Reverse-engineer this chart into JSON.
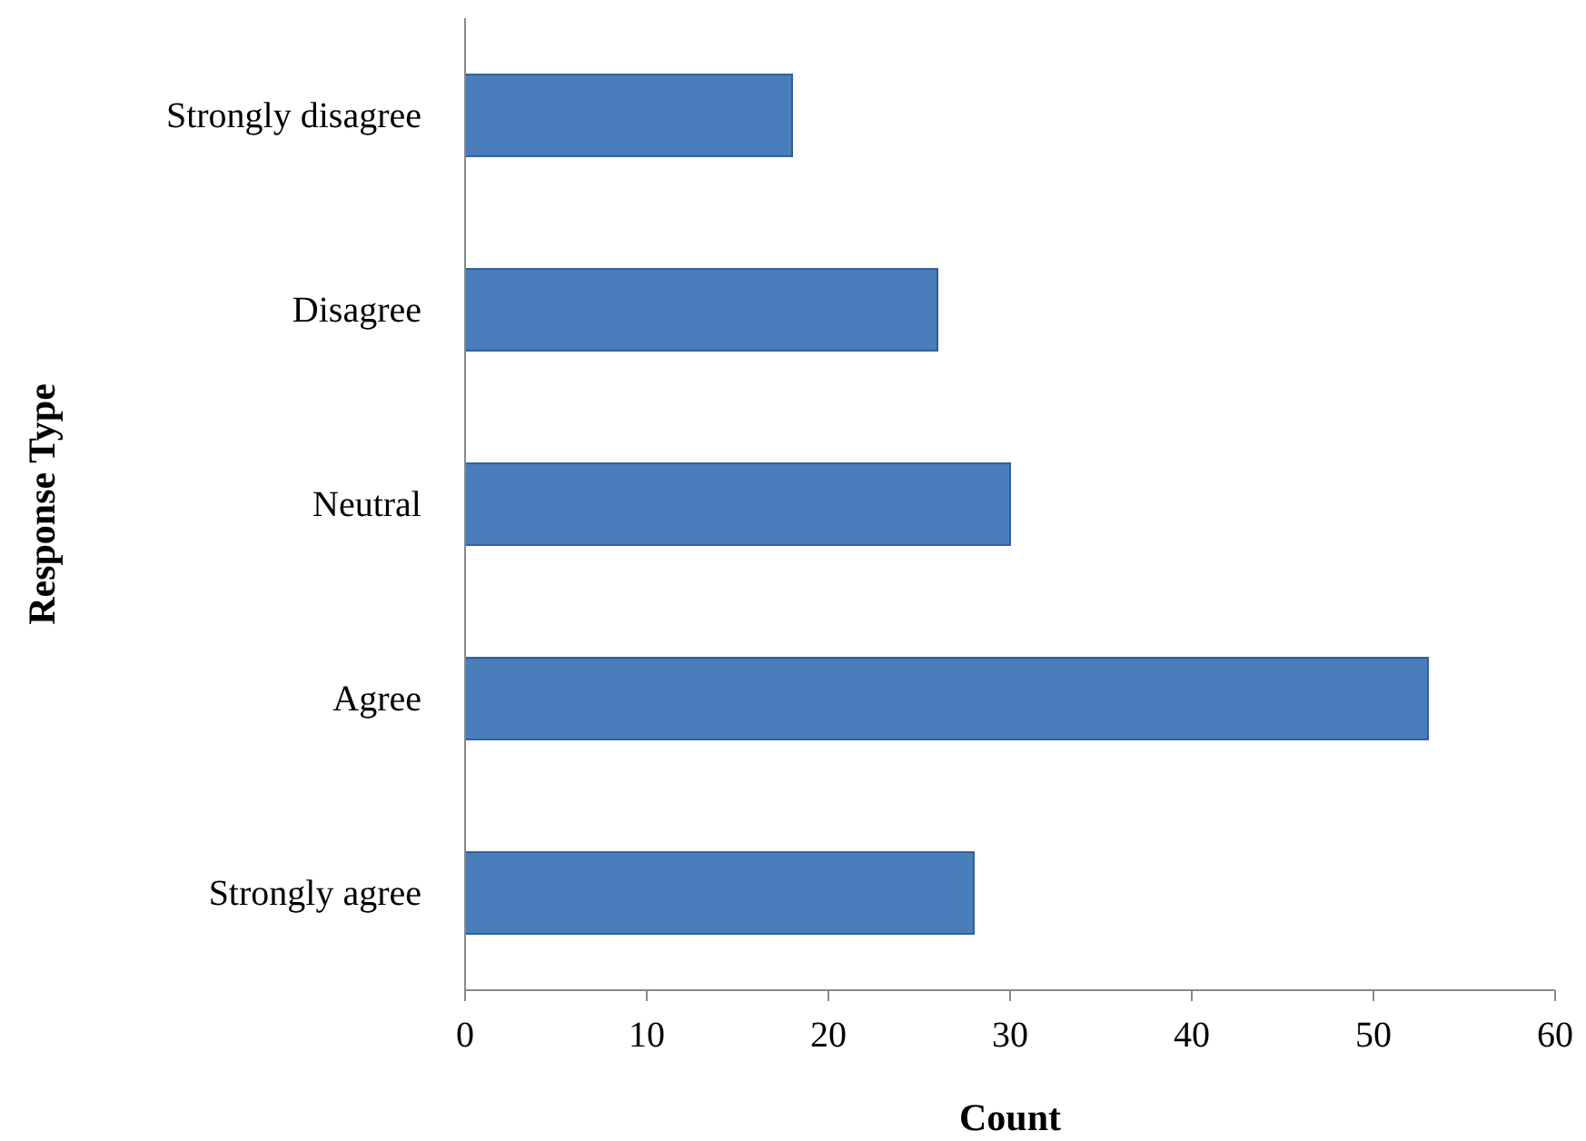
{
  "chart_data": {
    "type": "bar",
    "orientation": "horizontal",
    "categories": [
      "Strongly disagree",
      "Disagree",
      "Neutral",
      "Agree",
      "Strongly agree"
    ],
    "values": [
      18,
      26,
      30,
      53,
      28
    ],
    "color": "#4a7ebb",
    "xlabel": "Count",
    "ylabel": "Response Type",
    "xlim": [
      0,
      60
    ],
    "xticks": [
      0,
      10,
      20,
      30,
      40,
      50,
      60
    ],
    "grid": false
  }
}
